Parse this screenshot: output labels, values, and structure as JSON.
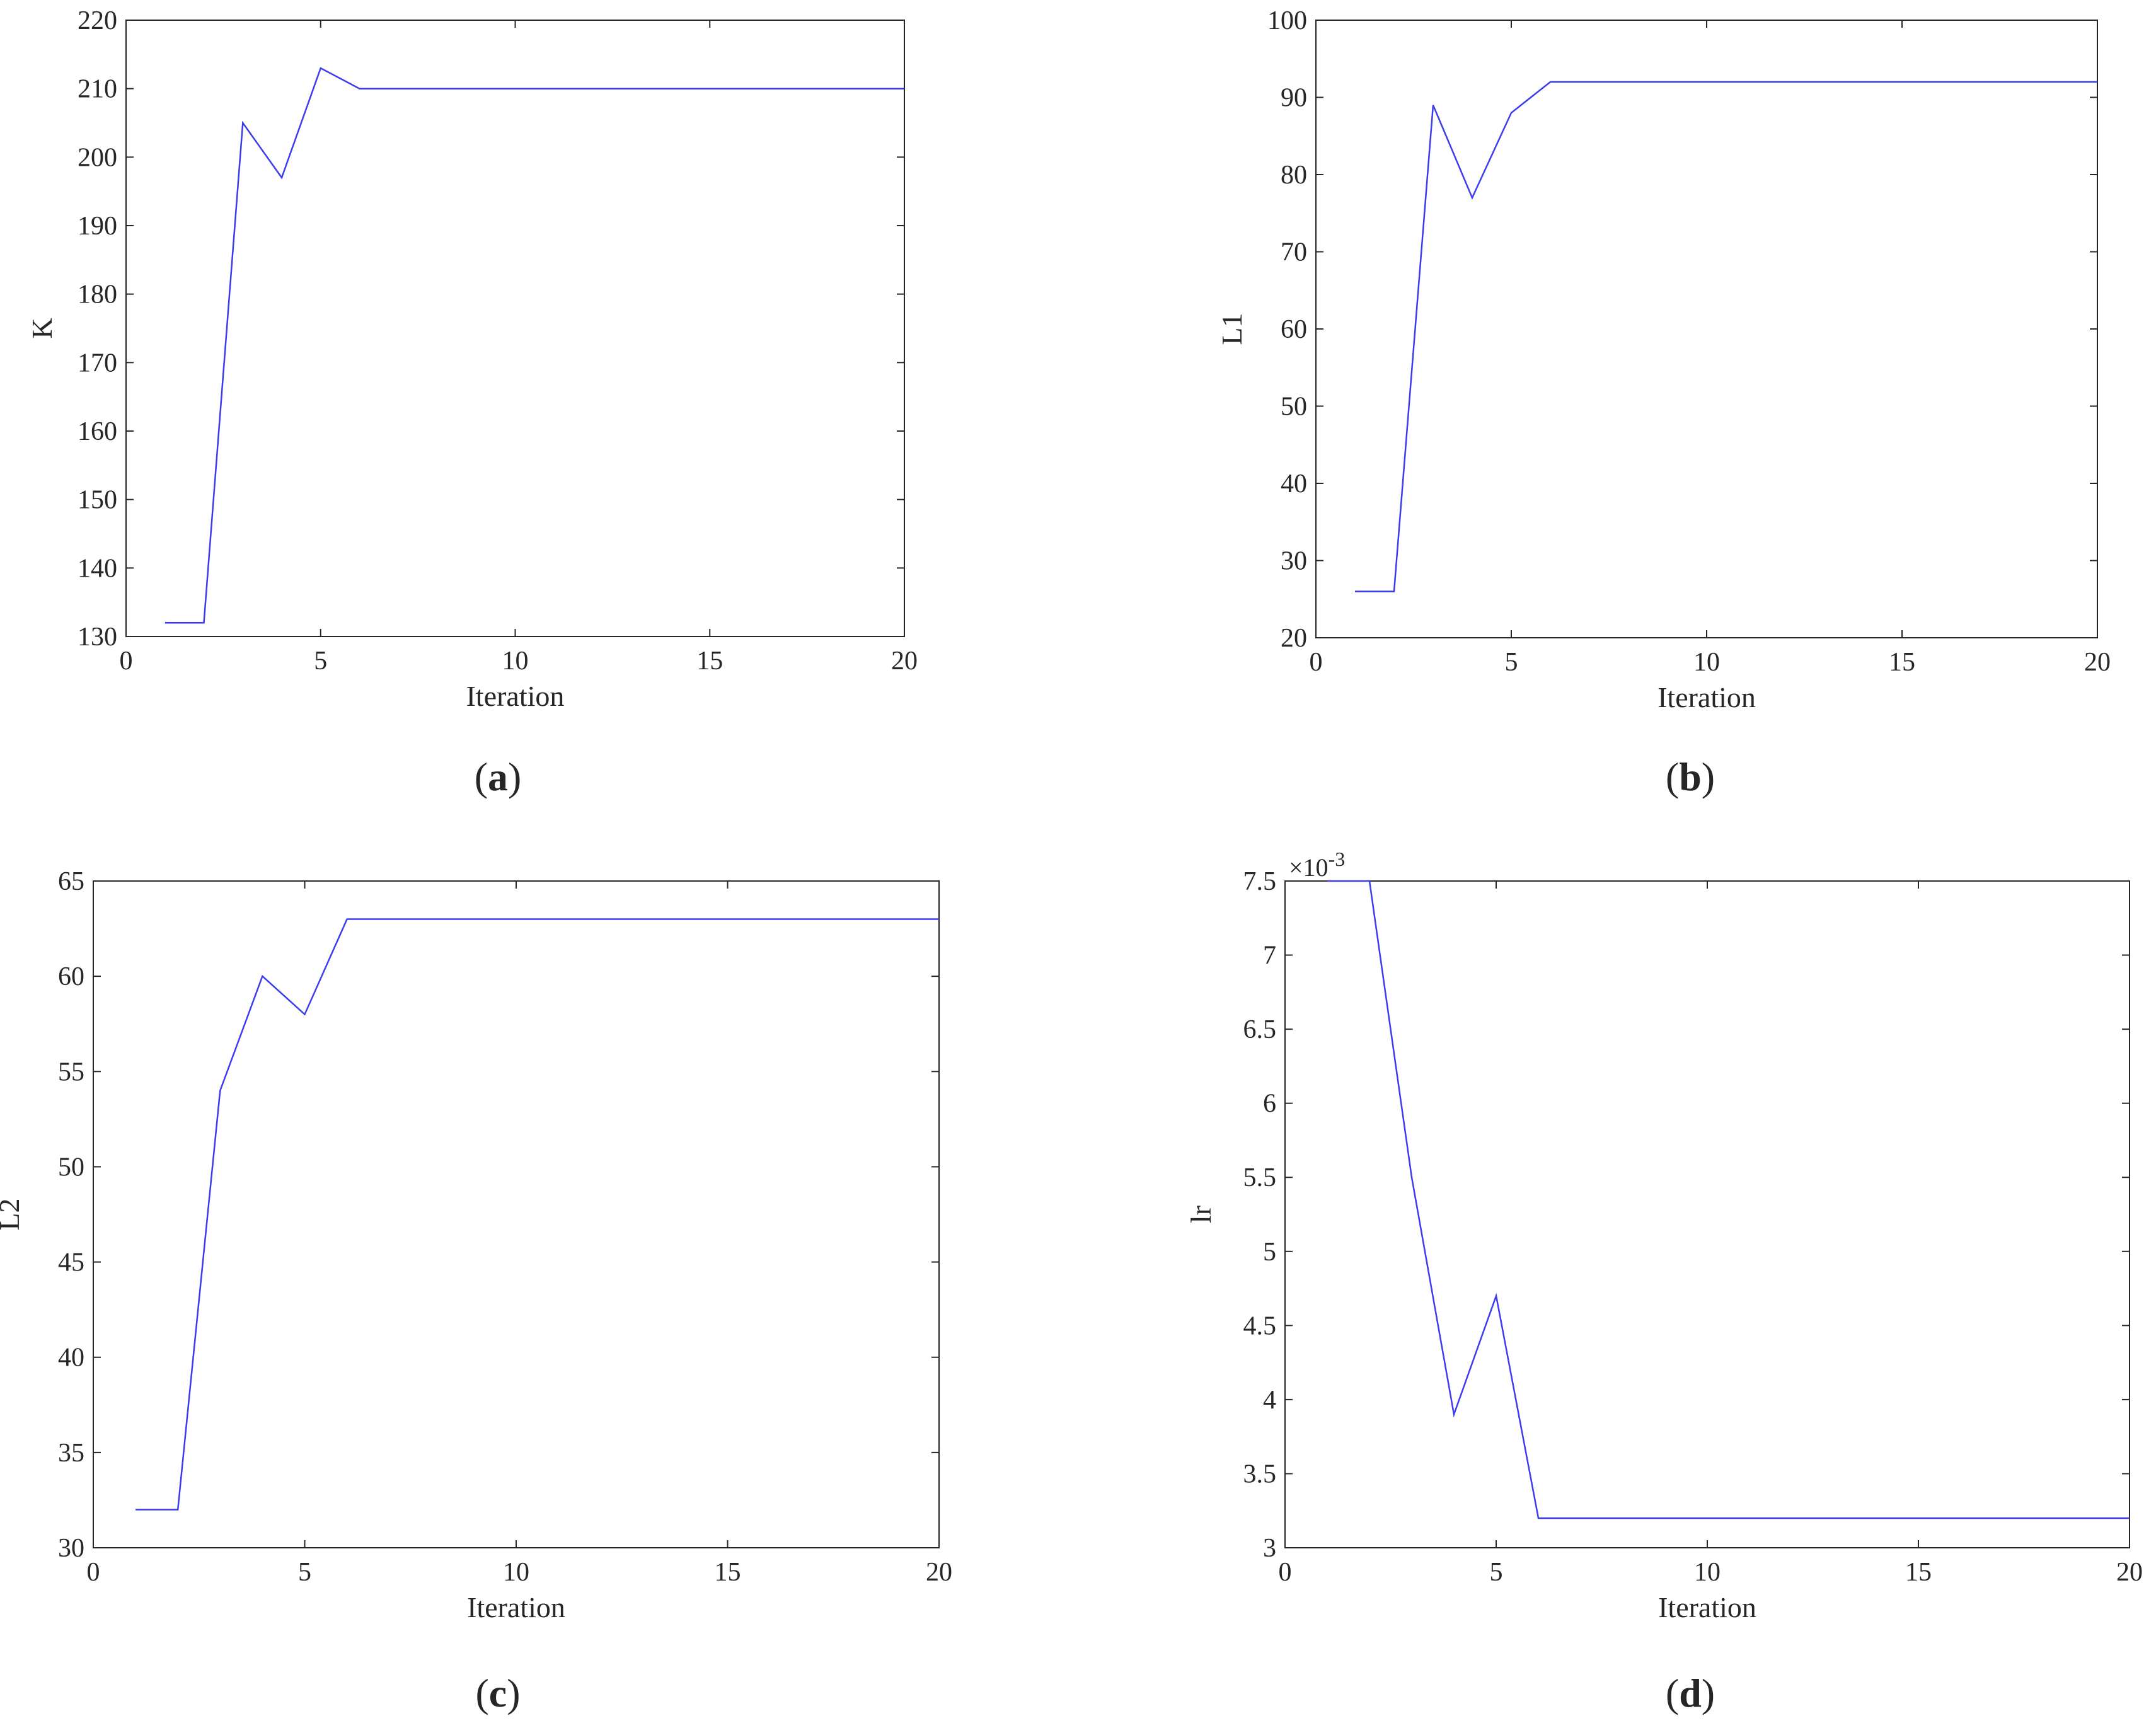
{
  "chart_data": [
    {
      "type": "line",
      "caption": "a",
      "xlabel": "Iteration",
      "ylabel": "K",
      "xlim": [
        0,
        20
      ],
      "ylim": [
        130,
        220
      ],
      "xticks": [
        0,
        5,
        10,
        15,
        20
      ],
      "yticks": [
        130,
        140,
        150,
        160,
        170,
        180,
        190,
        200,
        210,
        220
      ],
      "ytick_labels": [
        "130",
        "140",
        "150",
        "160",
        "170",
        "180",
        "190",
        "200",
        "210",
        "220"
      ],
      "exponent_label": "",
      "grid": false,
      "series": [
        {
          "color": "#3b3bef",
          "x": [
            1,
            2,
            3,
            4,
            5,
            6,
            7,
            8,
            9,
            10,
            11,
            12,
            13,
            14,
            15,
            16,
            17,
            18,
            19,
            20
          ],
          "y": [
            132,
            132,
            205,
            197,
            213,
            210,
            210,
            210,
            210,
            210,
            210,
            210,
            210,
            210,
            210,
            210,
            210,
            210,
            210,
            210
          ]
        }
      ]
    },
    {
      "type": "line",
      "caption": "b",
      "xlabel": "Iteration",
      "ylabel": "L1",
      "xlim": [
        0,
        20
      ],
      "ylim": [
        20,
        100
      ],
      "xticks": [
        0,
        5,
        10,
        15,
        20
      ],
      "yticks": [
        20,
        30,
        40,
        50,
        60,
        70,
        80,
        90,
        100
      ],
      "ytick_labels": [
        "20",
        "30",
        "40",
        "50",
        "60",
        "70",
        "80",
        "90",
        "100"
      ],
      "exponent_label": "",
      "grid": false,
      "series": [
        {
          "color": "#3b3bef",
          "x": [
            1,
            2,
            3,
            4,
            5,
            6,
            7,
            8,
            9,
            10,
            11,
            12,
            13,
            14,
            15,
            16,
            17,
            18,
            19,
            20
          ],
          "y": [
            26,
            26,
            89,
            77,
            88,
            92,
            92,
            92,
            92,
            92,
            92,
            92,
            92,
            92,
            92,
            92,
            92,
            92,
            92,
            92
          ]
        }
      ]
    },
    {
      "type": "line",
      "caption": "c",
      "xlabel": "Iteration",
      "ylabel": "L2",
      "xlim": [
        0,
        20
      ],
      "ylim": [
        30,
        65
      ],
      "xticks": [
        0,
        5,
        10,
        15,
        20
      ],
      "yticks": [
        30,
        35,
        40,
        45,
        50,
        55,
        60,
        65
      ],
      "ytick_labels": [
        "30",
        "35",
        "40",
        "45",
        "50",
        "55",
        "60",
        "65"
      ],
      "exponent_label": "",
      "grid": false,
      "series": [
        {
          "color": "#3b3bef",
          "x": [
            1,
            2,
            3,
            4,
            5,
            6,
            7,
            8,
            9,
            10,
            11,
            12,
            13,
            14,
            15,
            16,
            17,
            18,
            19,
            20
          ],
          "y": [
            32,
            32,
            54,
            60,
            58,
            63,
            63,
            63,
            63,
            63,
            63,
            63,
            63,
            63,
            63,
            63,
            63,
            63,
            63,
            63
          ]
        }
      ]
    },
    {
      "type": "line",
      "caption": "d",
      "xlabel": "Iteration",
      "ylabel": "lr",
      "xlim": [
        0,
        20
      ],
      "ylim": [
        0.003,
        0.0075
      ],
      "xticks": [
        0,
        5,
        10,
        15,
        20
      ],
      "yticks": [
        0.003,
        0.0035,
        0.004,
        0.0045,
        0.005,
        0.0055,
        0.006,
        0.0065,
        0.007,
        0.0075
      ],
      "ytick_labels": [
        "3",
        "3.5",
        "4",
        "4.5",
        "5",
        "5.5",
        "6",
        "6.5",
        "7",
        "7.5"
      ],
      "exponent_label": "×10-3",
      "exponent_base": "×10",
      "exponent_power": "-3",
      "grid": false,
      "series": [
        {
          "color": "#3b3bef",
          "x": [
            1,
            2,
            3,
            4,
            5,
            6,
            7,
            8,
            9,
            10,
            11,
            12,
            13,
            14,
            15,
            16,
            17,
            18,
            19,
            20
          ],
          "y": [
            0.0075,
            0.0075,
            0.0055,
            0.0039,
            0.0047,
            0.0032,
            0.0032,
            0.0032,
            0.0032,
            0.0032,
            0.0032,
            0.0032,
            0.0032,
            0.0032,
            0.0032,
            0.0032,
            0.0032,
            0.0032,
            0.0032,
            0.0032
          ]
        }
      ]
    }
  ]
}
